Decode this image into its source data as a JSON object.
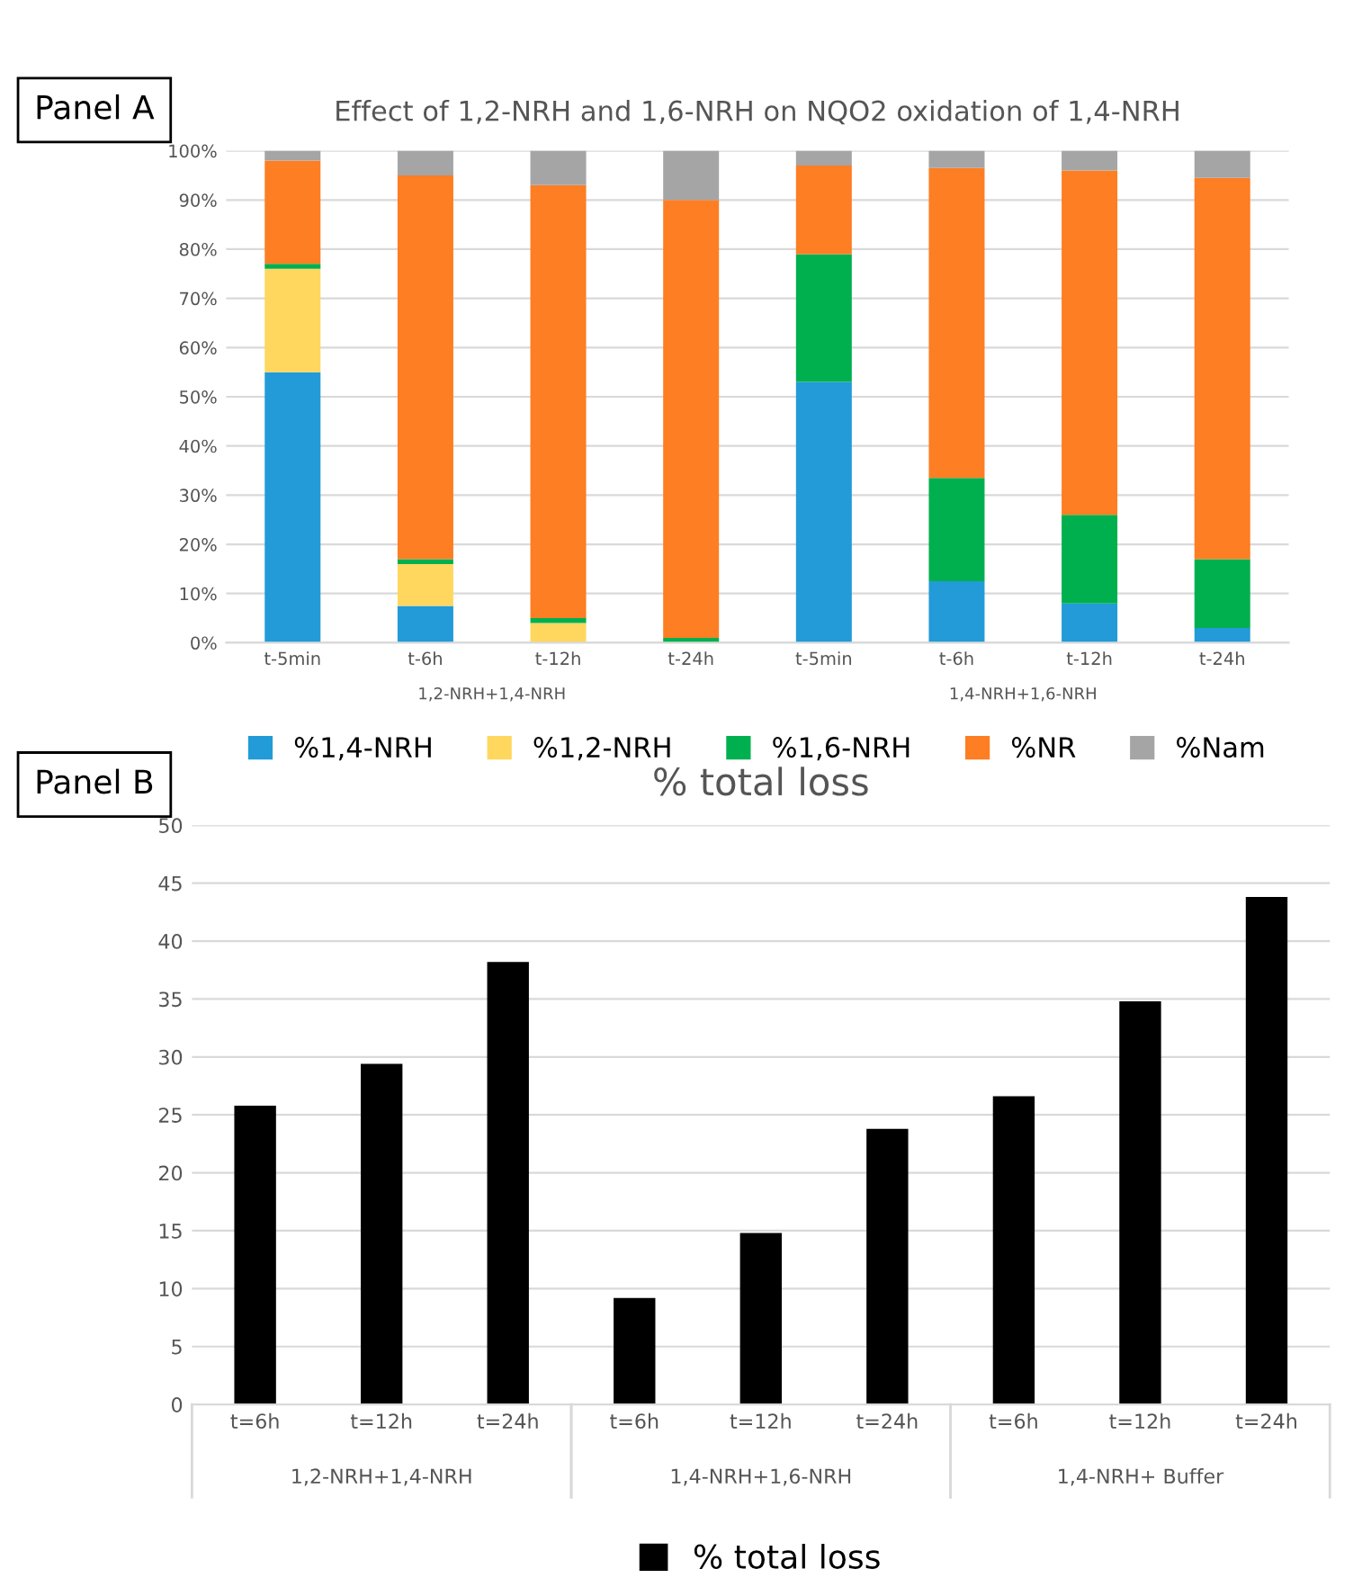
{
  "chart_data": [
    {
      "type": "bar",
      "stacked": true,
      "title": "Effect of 1,2-NRH and 1,6-NRH on NQO2 oxidation of 1,4-NRH",
      "annotations": [
        "Panel A",
        "1,2-NRH+1,4-NRH",
        "1,4-NRH+1,6-NRH"
      ],
      "categories": [
        "t-5min",
        "t-6h",
        "t-12h",
        "t-24h",
        "t-5min",
        "t-6h",
        "t-12h",
        "t-24h"
      ],
      "series": [
        {
          "name": "%1,4-NRH",
          "color": "#229bd8",
          "values": [
            55,
            7.5,
            0,
            0,
            53,
            12.5,
            8,
            3
          ]
        },
        {
          "name": "%1,2-NRH",
          "color": "#ffd75e",
          "values": [
            21,
            8.5,
            4,
            0,
            0,
            0,
            0,
            0
          ]
        },
        {
          "name": "%1,6-NRH",
          "color": "#00b04f",
          "values": [
            1,
            1,
            1,
            1,
            26,
            21,
            18,
            14
          ]
        },
        {
          "name": "%NR",
          "color": "#fd7e23",
          "values": [
            21,
            78,
            88,
            89,
            18,
            63,
            70,
            77.5
          ]
        },
        {
          "name": "%Nam",
          "color": "#a5a5a5",
          "values": [
            2,
            5,
            7,
            10,
            3,
            3.5,
            4,
            5.5
          ]
        }
      ],
      "ylim": [
        0,
        100
      ],
      "yticks": [
        {
          "value": 0,
          "label": "0%"
        },
        {
          "value": 10,
          "label": "10%"
        },
        {
          "value": 20,
          "label": "20%"
        },
        {
          "value": 30,
          "label": "30%"
        },
        {
          "value": 40,
          "label": "40%"
        },
        {
          "value": 50,
          "label": "50%"
        },
        {
          "value": 60,
          "label": "60%"
        },
        {
          "value": 70,
          "label": "70%"
        },
        {
          "value": 80,
          "label": "80%"
        },
        {
          "value": 90,
          "label": "90%"
        },
        {
          "value": 100,
          "label": "100%"
        }
      ],
      "grid": "y",
      "legend": "bottom"
    },
    {
      "type": "bar",
      "title": "% total loss",
      "annotations": [
        "Panel B",
        "1,2-NRH+1,4-NRH",
        "1,4-NRH+1,6-NRH",
        "1,4-NRH+ Buffer"
      ],
      "categories": [
        "t=6h",
        "t=12h",
        "t=24h",
        "t=6h",
        "t=12h",
        "t=24h",
        "t=6h",
        "t=12h",
        "t=24h"
      ],
      "series": [
        {
          "name": "% total loss",
          "color": "#000000",
          "values": [
            25.8,
            29.4,
            38.2,
            9.2,
            14.8,
            23.8,
            26.6,
            34.8,
            43.8
          ]
        }
      ],
      "ylim": [
        0,
        50
      ],
      "yticks": [
        0,
        5,
        10,
        15,
        20,
        25,
        30,
        35,
        40,
        45,
        50
      ],
      "grid": "y",
      "legend": "bottom"
    }
  ]
}
